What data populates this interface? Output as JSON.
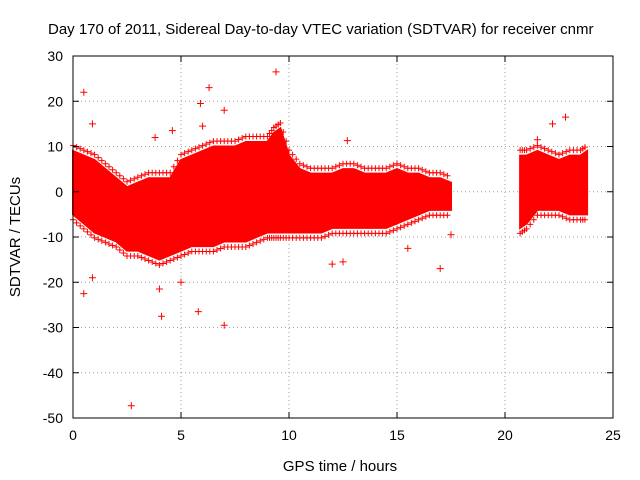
{
  "chart_data": {
    "type": "scatter",
    "title": "Day 170 of 2011, Sidereal Day-to-day VTEC variation (SDTVAR) for receiver cnmr",
    "xlabel": "GPS time / hours",
    "ylabel": "SDTVAR / TECUs",
    "xlim": [
      0,
      25
    ],
    "ylim": [
      -50,
      30
    ],
    "xticks": [
      0,
      5,
      10,
      15,
      20,
      25
    ],
    "yticks": [
      -50,
      -40,
      -30,
      -20,
      -10,
      0,
      10,
      20,
      30
    ],
    "grid": true,
    "marker": "+",
    "color": "#ff0000",
    "series": [
      {
        "name": "SDTVAR",
        "envelope": {
          "x": [
            0.0,
            0.5,
            1.0,
            1.5,
            2.0,
            2.5,
            3.0,
            3.5,
            4.0,
            4.5,
            5.0,
            5.5,
            6.0,
            6.5,
            7.0,
            7.5,
            8.0,
            8.5,
            9.0,
            9.3,
            9.6,
            10.0,
            10.5,
            11.0,
            11.5,
            12.0,
            12.5,
            13.0,
            13.5,
            14.0,
            14.5,
            15.0,
            15.5,
            16.0,
            16.5,
            17.0,
            17.5
          ],
          "upper": [
            9,
            8,
            7,
            5,
            3,
            1,
            2,
            3,
            3,
            3,
            7,
            8,
            9,
            10,
            10,
            10,
            11,
            11,
            11,
            13,
            14,
            8,
            5,
            4,
            4,
            4,
            5,
            5,
            4,
            4,
            4,
            5,
            4,
            4,
            3,
            3,
            2
          ],
          "lower": [
            -5,
            -7,
            -9,
            -10,
            -11,
            -13,
            -13,
            -14,
            -15,
            -14,
            -13,
            -12,
            -12,
            -12,
            -11,
            -11,
            -11,
            -10,
            -9,
            -9,
            -9,
            -9,
            -9,
            -9,
            -9,
            -8,
            -8,
            -8,
            -8,
            -8,
            -8,
            -7,
            -6,
            -5,
            -4,
            -4,
            -4
          ]
        },
        "envelope2": {
          "x": [
            20.7,
            21.0,
            21.5,
            22.0,
            22.5,
            23.0,
            23.5,
            23.8
          ],
          "upper": [
            8,
            8,
            9,
            8,
            7,
            8,
            8,
            9
          ],
          "lower": [
            -8,
            -7,
            -4,
            -4,
            -4,
            -5,
            -5,
            -5
          ]
        },
        "outliers": [
          [
            0.5,
            22
          ],
          [
            0.5,
            -22.5
          ],
          [
            0.9,
            15
          ],
          [
            0.9,
            -19
          ],
          [
            2.7,
            -47.3
          ],
          [
            3.8,
            12
          ],
          [
            4.0,
            -21.5
          ],
          [
            4.1,
            -27.5
          ],
          [
            4.6,
            13.5
          ],
          [
            5.0,
            -20
          ],
          [
            5.9,
            19.5
          ],
          [
            5.8,
            -26.5
          ],
          [
            6.0,
            14.5
          ],
          [
            6.3,
            23
          ],
          [
            7.0,
            -29.5
          ],
          [
            7.0,
            18
          ],
          [
            9.4,
            26.5
          ],
          [
            12.7,
            11.3
          ],
          [
            12.0,
            -16
          ],
          [
            12.5,
            -15.5
          ],
          [
            15.5,
            -12.5
          ],
          [
            17.0,
            -17
          ],
          [
            17.5,
            -9.5
          ],
          [
            21.5,
            11.5
          ],
          [
            22.2,
            15
          ],
          [
            22.8,
            16.5
          ]
        ]
      }
    ]
  }
}
